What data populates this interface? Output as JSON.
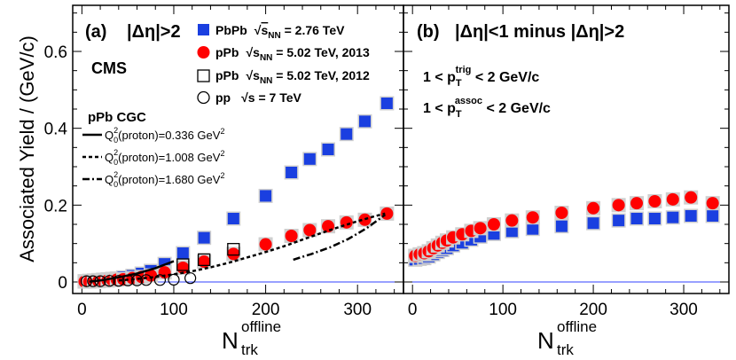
{
  "chart_data": [
    {
      "type": "scatter",
      "panel_label": "(a)",
      "title_prefix": "|Δη|",
      "title_suffix": ">2",
      "xlim": [
        -10,
        350
      ],
      "ylim": [
        -0.03,
        0.72
      ],
      "yticks": [
        "0",
        "0.2",
        "0.4",
        "0.6"
      ],
      "ytick_values": [
        0,
        0.2,
        0.4,
        0.6
      ],
      "xticks": [
        "0",
        "100",
        "200",
        "300"
      ],
      "xtick_values": [
        0,
        100,
        200,
        300
      ],
      "cms_label": "CMS",
      "legend": [
        {
          "pre": "PbPb",
          "mid": "s",
          "sub": "NN",
          "post": " = 2.76 TeV",
          "marker": "square-blue"
        },
        {
          "pre": "pPb",
          "mid": "s",
          "sub": "NN",
          "post": " = 5.02 TeV, 2013",
          "marker": "circle-red"
        },
        {
          "pre": "pPb",
          "mid": "s",
          "sub": "NN",
          "post": " = 5.02 TeV, 2012",
          "marker": "square-open"
        },
        {
          "pre": "pp",
          "mid": "s",
          "sub": "",
          "post": " = 7 TeV",
          "marker": "circle-open"
        }
      ],
      "cgc_title": "pPb CGC",
      "cgc_legend": [
        {
          "q": "Q",
          "sub": "0",
          "sup": "2",
          "text": "(proton)=0.336 GeV",
          "sup2": "2",
          "style": "solid"
        },
        {
          "q": "Q",
          "sub": "0",
          "sup": "2",
          "text": "(proton)=1.008 GeV",
          "sup2": "2",
          "style": "dashed"
        },
        {
          "q": "Q",
          "sub": "0",
          "sup": "2",
          "text": "(proton)=1.680 GeV",
          "sup2": "2",
          "style": "dashdot"
        }
      ],
      "series": [
        {
          "name": "PbPb 2.76 TeV",
          "x": [
            3,
            8,
            13,
            18,
            23,
            28,
            33,
            38,
            45,
            55,
            65,
            75,
            90,
            110,
            133,
            165,
            200,
            228,
            248,
            268,
            288,
            308,
            332
          ],
          "y": [
            0.002,
            0.003,
            0.004,
            0.005,
            0.006,
            0.007,
            0.008,
            0.009,
            0.012,
            0.016,
            0.022,
            0.029,
            0.047,
            0.075,
            0.115,
            0.165,
            0.224,
            0.285,
            0.32,
            0.345,
            0.385,
            0.418,
            0.465
          ]
        },
        {
          "name": "pPb 5.02 TeV 2013",
          "x": [
            3,
            8,
            13,
            18,
            23,
            28,
            33,
            38,
            45,
            55,
            65,
            75,
            90,
            110,
            133,
            165,
            200,
            228,
            248,
            268,
            288,
            308,
            332
          ],
          "y": [
            0.001,
            0.001,
            0.002,
            0.002,
            0.003,
            0.004,
            0.005,
            0.006,
            0.007,
            0.01,
            0.013,
            0.017,
            0.025,
            0.037,
            0.053,
            0.073,
            0.098,
            0.12,
            0.135,
            0.145,
            0.155,
            0.162,
            0.178
          ]
        },
        {
          "name": "pPb 5.02 TeV 2012",
          "x": [
            110,
            133,
            165
          ],
          "y": [
            0.045,
            0.058,
            0.085
          ]
        },
        {
          "name": "pp 7 TeV",
          "x": [
            5,
            12,
            20,
            30,
            40,
            50,
            60,
            70,
            85,
            100,
            118
          ],
          "y": [
            0.002,
            0.002,
            0.002,
            0.003,
            0.003,
            0.004,
            0.004,
            0.005,
            0.005,
            0.006,
            0.01
          ]
        },
        {
          "name": "CGC 0.336 solid",
          "x": [
            8,
            20,
            40,
            60,
            80,
            100
          ],
          "y": [
            0.001,
            0.004,
            0.012,
            0.022,
            0.036,
            0.054
          ]
        },
        {
          "name": "CGC 1.008 dashed",
          "x": [
            40,
            60,
            80,
            100,
            120,
            140,
            160,
            180,
            200,
            220,
            240,
            260,
            280,
            300,
            320,
            330
          ],
          "y": [
            0.004,
            0.008,
            0.013,
            0.02,
            0.028,
            0.038,
            0.05,
            0.064,
            0.078,
            0.093,
            0.11,
            0.127,
            0.143,
            0.158,
            0.172,
            0.178
          ]
        },
        {
          "name": "CGC 1.680 dashdot",
          "x": [
            230,
            250,
            270,
            290,
            310,
            330
          ],
          "y": [
            0.058,
            0.073,
            0.09,
            0.112,
            0.14,
            0.175
          ]
        }
      ]
    },
    {
      "type": "scatter",
      "panel_label": "(b)",
      "title_prefix": "|Δη|",
      "title_mid": "<1 minus ",
      "title_mid2": "|Δη|",
      "title_suffix": ">2",
      "xlim": [
        -10,
        350
      ],
      "ylim": [
        -0.03,
        0.72
      ],
      "xticks": [
        "0",
        "100",
        "200",
        "300"
      ],
      "xtick_values": [
        0,
        100,
        200,
        300
      ],
      "annotations": [
        {
          "pre": "1 < p",
          "sub": "T",
          "sup": "trig",
          "post": " < 2 GeV/c"
        },
        {
          "pre": "1 < p",
          "sub": "T",
          "sup": "assoc",
          "post": " < 2 GeV/c"
        }
      ],
      "series": [
        {
          "name": "PbPb 2.76 TeV",
          "x": [
            3,
            8,
            13,
            18,
            23,
            28,
            33,
            38,
            45,
            55,
            65,
            75,
            90,
            110,
            133,
            165,
            200,
            228,
            248,
            268,
            288,
            308,
            332
          ],
          "y": [
            0.058,
            0.06,
            0.062,
            0.066,
            0.072,
            0.078,
            0.083,
            0.088,
            0.095,
            0.102,
            0.11,
            0.118,
            0.125,
            0.132,
            0.138,
            0.145,
            0.153,
            0.16,
            0.165,
            0.165,
            0.168,
            0.172,
            0.172
          ]
        },
        {
          "name": "pPb 5.02 TeV 2013",
          "x": [
            3,
            8,
            13,
            18,
            23,
            28,
            33,
            38,
            45,
            55,
            65,
            75,
            90,
            110,
            133,
            165,
            200,
            228,
            248,
            268,
            288,
            308,
            332
          ],
          "y": [
            0.068,
            0.072,
            0.075,
            0.08,
            0.088,
            0.095,
            0.102,
            0.108,
            0.116,
            0.124,
            0.133,
            0.14,
            0.15,
            0.16,
            0.168,
            0.18,
            0.192,
            0.2,
            0.205,
            0.21,
            0.215,
            0.22,
            0.205
          ]
        }
      ]
    }
  ],
  "axes": {
    "ylabel": "Associated Yield / (GeV/c)",
    "xlabel_main": "N",
    "xlabel_sup": "offline",
    "xlabel_sub": "trk"
  }
}
